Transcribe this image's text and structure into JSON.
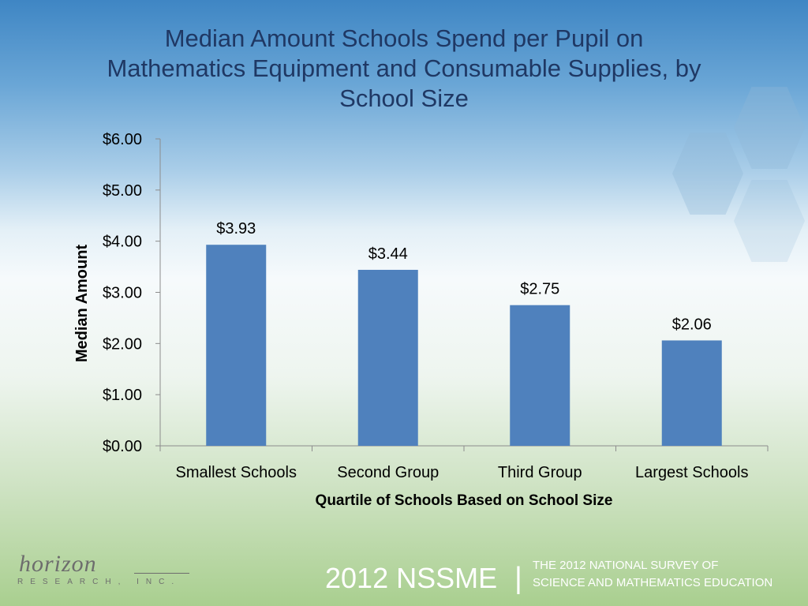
{
  "title_lines": [
    "Median Amount Schools Spend per Pupil on",
    "Mathematics Equipment and Consumable Supplies, by",
    "School Size"
  ],
  "chart_data": {
    "type": "bar",
    "title": "Median Amount Schools Spend per Pupil on Mathematics Equipment and Consumable Supplies, by School Size",
    "categories": [
      "Smallest Schools",
      "Second Group",
      "Third Group",
      "Largest Schools"
    ],
    "values": [
      3.93,
      3.44,
      2.75,
      2.06
    ],
    "data_labels": [
      "$3.93",
      "$3.44",
      "$2.75",
      "$2.06"
    ],
    "xlabel": "Quartile of Schools Based on School Size",
    "ylabel": "Median Amount",
    "ylim": [
      0,
      6
    ],
    "yticks": [
      0,
      1,
      2,
      3,
      4,
      5,
      6
    ],
    "ytick_labels": [
      "$0.00",
      "$1.00",
      "$2.00",
      "$3.00",
      "$4.00",
      "$5.00",
      "$6.00"
    ],
    "grid": false,
    "legend": "none",
    "bar_color": "#4f81bd"
  },
  "footer": {
    "logo_word": "horizon",
    "logo_sub": "RESEARCH, INC.",
    "nssme": "2012 NSSME",
    "nssme_bar": "|",
    "survey_lines": [
      "THE 2012 NATIONAL SURVEY OF",
      "SCIENCE AND MATHEMATICS EDUCATION"
    ]
  }
}
